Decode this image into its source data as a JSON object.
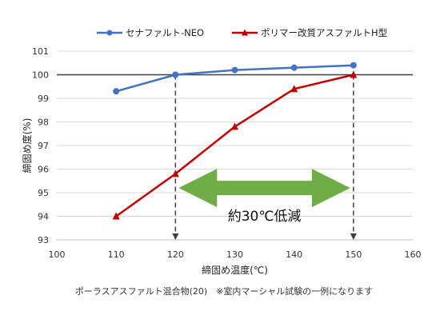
{
  "chart_data": {
    "type": "line",
    "x": [
      110,
      120,
      130,
      140,
      150
    ],
    "series": [
      {
        "name": "セナファルト-NEO",
        "values": [
          99.3,
          100.0,
          100.2,
          100.3,
          100.4
        ],
        "color": "#4472c4",
        "marker": "circle"
      },
      {
        "name": "ポリマー改質アスファルトH型",
        "values": [
          94.0,
          95.8,
          97.8,
          99.4,
          100.0
        ],
        "color": "#c00000",
        "marker": "triangle"
      }
    ],
    "xlabel": "締固め温度(℃)",
    "ylabel": "締固め度(%)",
    "xlim": [
      100,
      160
    ],
    "ylim": [
      93,
      101
    ],
    "xticks": [
      100,
      110,
      120,
      130,
      140,
      150,
      160
    ],
    "yticks": [
      93,
      94,
      95,
      96,
      97,
      98,
      99,
      100,
      101
    ],
    "grid": "horizontal",
    "legend": "top-center",
    "reference_line": 100,
    "dashed_verticals": [
      120,
      150
    ],
    "arrow": {
      "from_x": 120,
      "to_x": 150,
      "y": 95.2,
      "color": "#70ad47",
      "label": "約30℃低減"
    },
    "footnote": "ポーラスアスファルト混合物(20)　※室内マーシャル試験の一例になります"
  }
}
